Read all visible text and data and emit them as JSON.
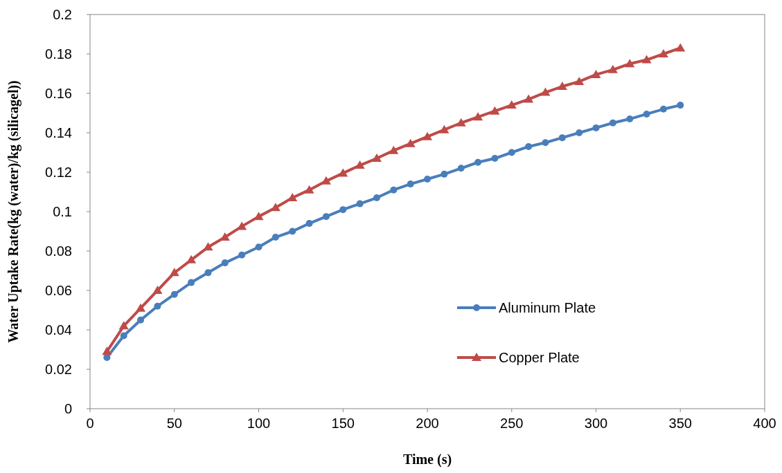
{
  "chart_data": {
    "type": "line",
    "xlabel": "Time (s)",
    "ylabel": "Water Uptake Rate(kg (water)/kg (silicagel))",
    "x": [
      10,
      20,
      30,
      40,
      50,
      60,
      70,
      80,
      90,
      100,
      110,
      120,
      130,
      140,
      150,
      160,
      170,
      180,
      190,
      200,
      210,
      220,
      230,
      240,
      250,
      260,
      270,
      280,
      290,
      300,
      310,
      320,
      330,
      340,
      350
    ],
    "series": [
      {
        "name": "Aluminum Plate",
        "color": "#4a7ebb",
        "marker": "circle",
        "values": [
          0.026,
          0.037,
          0.045,
          0.052,
          0.058,
          0.064,
          0.069,
          0.074,
          0.078,
          0.082,
          0.087,
          0.09,
          0.094,
          0.0975,
          0.101,
          0.104,
          0.107,
          0.111,
          0.114,
          0.1165,
          0.119,
          0.122,
          0.125,
          0.127,
          0.13,
          0.133,
          0.135,
          0.1375,
          0.14,
          0.1425,
          0.145,
          0.147,
          0.1495,
          0.152,
          0.154
        ]
      },
      {
        "name": "Copper Plate",
        "color": "#be4b48",
        "marker": "triangle",
        "values": [
          0.029,
          0.042,
          0.051,
          0.06,
          0.069,
          0.0755,
          0.082,
          0.087,
          0.0925,
          0.0975,
          0.102,
          0.107,
          0.111,
          0.1155,
          0.1195,
          0.1235,
          0.127,
          0.131,
          0.1345,
          0.138,
          0.1415,
          0.145,
          0.148,
          0.151,
          0.154,
          0.157,
          0.1605,
          0.1635,
          0.166,
          0.1695,
          0.172,
          0.175,
          0.177,
          0.18,
          0.183
        ]
      }
    ],
    "xlim": [
      0,
      400
    ],
    "xticks": [
      0,
      50,
      100,
      150,
      200,
      250,
      300,
      350,
      400
    ],
    "ylim": [
      0,
      0.2
    ],
    "yticks": [
      0,
      0.02,
      0.04,
      0.06,
      0.08,
      0.1,
      0.12,
      0.14,
      0.16,
      0.18,
      0.2
    ],
    "legend": "right",
    "line_style": "solid"
  }
}
